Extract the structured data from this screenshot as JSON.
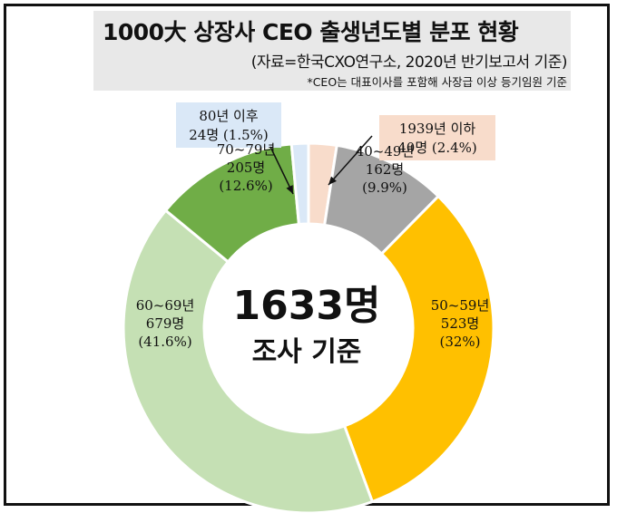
{
  "header": {
    "title": "1000大 상장사 CEO 출생년도별 분포 현황",
    "source": "(자료=한국CXO연구소, 2020년 반기보고서 기준)",
    "footnote": "*CEO는 대표이사를 포함해 사장급 이상 등기임원 기준"
  },
  "center": {
    "total": "1633명",
    "caption": "조사 기준"
  },
  "colors": {
    "1939년 이하": "#f8dccb",
    "40~49년": "#a5a5a5",
    "50~59년": "#ffc000",
    "60~69년": "#c5e0b4",
    "70~79년": "#70ad47",
    "80년 이후": "#dae8f7"
  },
  "chart_data": {
    "type": "pie",
    "subtype": "donut",
    "total": 1633,
    "slices": [
      {
        "name": "1939년 이하",
        "count": 40,
        "count_label": "40명",
        "percent_label": "(2.4%)"
      },
      {
        "name": "40~49년",
        "count": 162,
        "count_label": "162명",
        "percent_label": "(9.9%)"
      },
      {
        "name": "50~59년",
        "count": 523,
        "count_label": "523명",
        "percent_label": "(32%)"
      },
      {
        "name": "60~69년",
        "count": 679,
        "count_label": "679명",
        "percent_label": "(41.6%)"
      },
      {
        "name": "70~79년",
        "count": 205,
        "count_label": "205명",
        "percent_label": "(12.6%)"
      },
      {
        "name": "80년 이후",
        "count": 24,
        "count_label": "24명",
        "percent_label": "(1.5%)"
      }
    ]
  }
}
